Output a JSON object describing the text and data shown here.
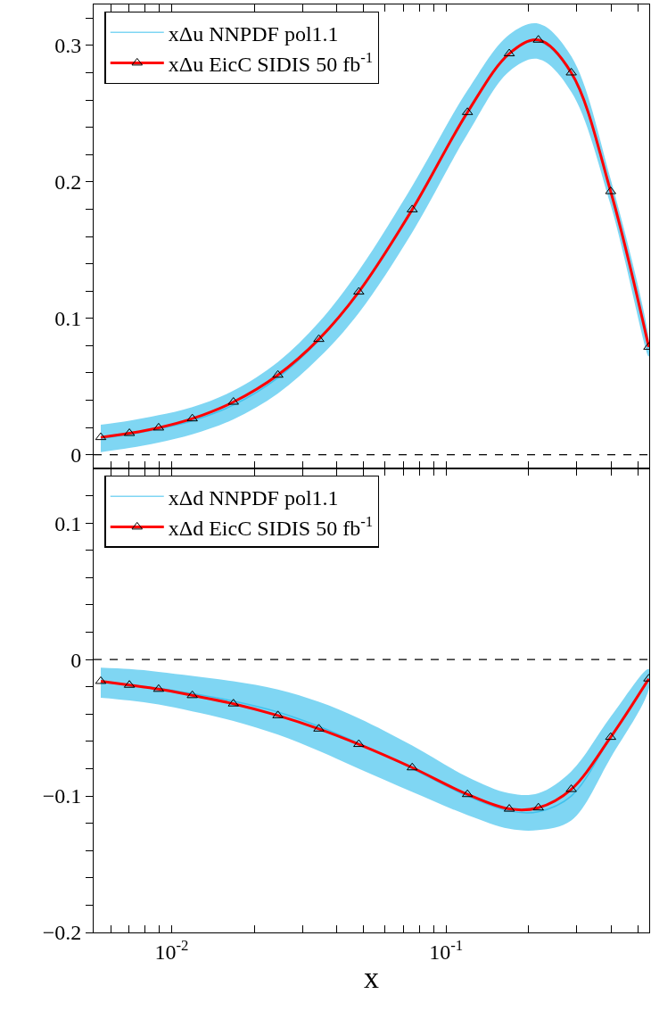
{
  "chart_data": [
    {
      "type": "line",
      "xlim": [
        0.0052,
        0.55
      ],
      "ylim": [
        -0.01,
        0.33
      ],
      "log": "x",
      "tick_labels": "y",
      "legend": "top left",
      "marker": "triangle",
      "x": [
        0.00552,
        0.00702,
        0.00897,
        0.0119,
        0.0168,
        0.0244,
        0.0344,
        0.0481,
        0.0753,
        0.1197,
        0.17,
        0.217,
        0.286,
        0.398,
        0.548
      ],
      "xticks": [
        {
          "value": 0.006,
          "label": null
        },
        {
          "value": 0.007,
          "label": null
        },
        {
          "value": 0.008,
          "label": null
        },
        {
          "value": 0.009,
          "label": null
        },
        {
          "value": 0.01,
          "label": "10$^{-2}$"
        },
        {
          "value": 0.02,
          "label": null
        },
        {
          "value": 0.03,
          "label": null
        },
        {
          "value": 0.04,
          "label": null
        },
        {
          "value": 0.05,
          "label": null
        },
        {
          "value": 0.06,
          "label": null
        },
        {
          "value": 0.07,
          "label": null
        },
        {
          "value": 0.08,
          "label": null
        },
        {
          "value": 0.09,
          "label": null
        },
        {
          "value": 0.1,
          "label": "10$^{-1}$"
        },
        {
          "value": 0.2,
          "label": null
        },
        {
          "value": 0.3,
          "label": null
        },
        {
          "value": 0.4,
          "label": null
        },
        {
          "value": 0.5,
          "label": null
        }
      ],
      "yticks": [
        0,
        {
          "value": 0.02,
          "label": null
        },
        {
          "value": 0.04,
          "label": null
        },
        {
          "value": 0.06,
          "label": null
        },
        {
          "value": 0.08,
          "label": null
        },
        0.1,
        {
          "value": 0.12,
          "label": null
        },
        {
          "value": 0.14,
          "label": null
        },
        {
          "value": 0.16,
          "label": null
        },
        {
          "value": 0.18,
          "label": null
        },
        0.2,
        {
          "value": 0.22,
          "label": null
        },
        {
          "value": 0.24,
          "label": null
        },
        {
          "value": 0.26,
          "label": null
        },
        {
          "value": 0.28,
          "label": null
        },
        0.3,
        {
          "value": 0.32,
          "label": null
        }
      ],
      "ref_lines": [
        {
          "axis": "y",
          "value": 0,
          "color": "#000000",
          "line_style": "dashed"
        }
      ],
      "series": [
        {
          "name": "xΔu NNPDF pol1.1",
          "marker": "none",
          "color": "#00aee8",
          "values": [
            0.012,
            0.015,
            0.019,
            0.025,
            0.0365,
            0.0565,
            0.084,
            0.1195,
            0.18,
            0.251,
            0.2945,
            0.303,
            0.279,
            0.1925,
            0.0785
          ],
          "lower": [
            0.002,
            0.005,
            0.009,
            0.015,
            0.026,
            0.045,
            0.071,
            0.104,
            0.163,
            0.235,
            0.281,
            0.29,
            0.266,
            0.183,
            0.072
          ],
          "upper": [
            0.022,
            0.025,
            0.029,
            0.035,
            0.047,
            0.068,
            0.097,
            0.135,
            0.197,
            0.267,
            0.308,
            0.316,
            0.292,
            0.202,
            0.085
          ]
        },
        {
          "name": "xΔu EicC SIDIS 50 fb$^{-1}$",
          "color": "#ff0000",
          "values": [
            0.0128,
            0.0158,
            0.0198,
            0.0265,
            0.0387,
            0.0585,
            0.0847,
            0.1194,
            0.1797,
            0.251,
            0.294,
            0.304,
            0.28,
            0.193,
            0.079
          ]
        }
      ]
    },
    {
      "type": "line",
      "xlim": [
        0.0052,
        0.55
      ],
      "ylim": [
        -0.2,
        0.14
      ],
      "log": "x",
      "legend": "top left",
      "marker": "triangle",
      "xlabel": "x",
      "x": [
        0.00552,
        0.00702,
        0.00897,
        0.0119,
        0.0168,
        0.0244,
        0.0344,
        0.0481,
        0.0753,
        0.1197,
        0.17,
        0.217,
        0.286,
        0.398,
        0.548
      ],
      "xticks": [
        {
          "value": 0.006,
          "label": null
        },
        {
          "value": 0.007,
          "label": null
        },
        {
          "value": 0.008,
          "label": null
        },
        {
          "value": 0.009,
          "label": null
        },
        {
          "value": 0.01,
          "label": "10$^{-2}$"
        },
        {
          "value": 0.02,
          "label": null
        },
        {
          "value": 0.03,
          "label": null
        },
        {
          "value": 0.04,
          "label": null
        },
        {
          "value": 0.05,
          "label": null
        },
        {
          "value": 0.06,
          "label": null
        },
        {
          "value": 0.07,
          "label": null
        },
        {
          "value": 0.08,
          "label": null
        },
        {
          "value": 0.09,
          "label": null
        },
        {
          "value": 0.1,
          "label": "10$^{-1}$"
        },
        {
          "value": 0.2,
          "label": null
        },
        {
          "value": 0.3,
          "label": null
        },
        {
          "value": 0.4,
          "label": null
        },
        {
          "value": 0.5,
          "label": null
        }
      ],
      "yticks": [
        {
          "value": -0.2,
          "label": "−0.2"
        },
        {
          "value": -0.18,
          "label": null
        },
        {
          "value": -0.16,
          "label": null
        },
        {
          "value": -0.14,
          "label": null
        },
        {
          "value": -0.12,
          "label": null
        },
        {
          "value": -0.1,
          "label": "−0.1"
        },
        {
          "value": -0.08,
          "label": null
        },
        {
          "value": -0.06,
          "label": null
        },
        {
          "value": -0.04,
          "label": null
        },
        {
          "value": -0.02,
          "label": null
        },
        0,
        {
          "value": 0.02,
          "label": null
        },
        {
          "value": 0.04,
          "label": null
        },
        {
          "value": 0.06,
          "label": null
        },
        {
          "value": 0.08,
          "label": null
        },
        0.1,
        {
          "value": 0.12,
          "label": null
        }
      ],
      "ref_lines": [
        {
          "axis": "y",
          "value": 0,
          "color": "#000000",
          "line_style": "dashed"
        }
      ],
      "series": [
        {
          "name": "xΔd NNPDF pol1.1",
          "marker": "none",
          "color": "#00aee8",
          "values": [
            -0.017,
            -0.0185,
            -0.021,
            -0.025,
            -0.0305,
            -0.0385,
            -0.049,
            -0.0615,
            -0.08,
            -0.1,
            -0.111,
            -0.1115,
            -0.1,
            -0.057,
            -0.0145
          ],
          "lower": [
            -0.028,
            -0.03,
            -0.033,
            -0.038,
            -0.045,
            -0.055,
            -0.067,
            -0.08,
            -0.097,
            -0.114,
            -0.124,
            -0.125,
            -0.118,
            -0.072,
            -0.022
          ],
          "upper": [
            -0.006,
            -0.007,
            -0.009,
            -0.012,
            -0.016,
            -0.022,
            -0.031,
            -0.043,
            -0.063,
            -0.086,
            -0.098,
            -0.098,
            -0.082,
            -0.042,
            -0.007
          ]
        },
        {
          "name": "xΔd EicC SIDIS 50 fb$^{-1}$",
          "color": "#ff0000",
          "values": [
            -0.0159,
            -0.0187,
            -0.0217,
            -0.0263,
            -0.0324,
            -0.041,
            -0.0508,
            -0.0621,
            -0.0792,
            -0.0988,
            -0.1095,
            -0.1086,
            -0.0951,
            -0.0569,
            -0.0141
          ]
        }
      ]
    }
  ]
}
